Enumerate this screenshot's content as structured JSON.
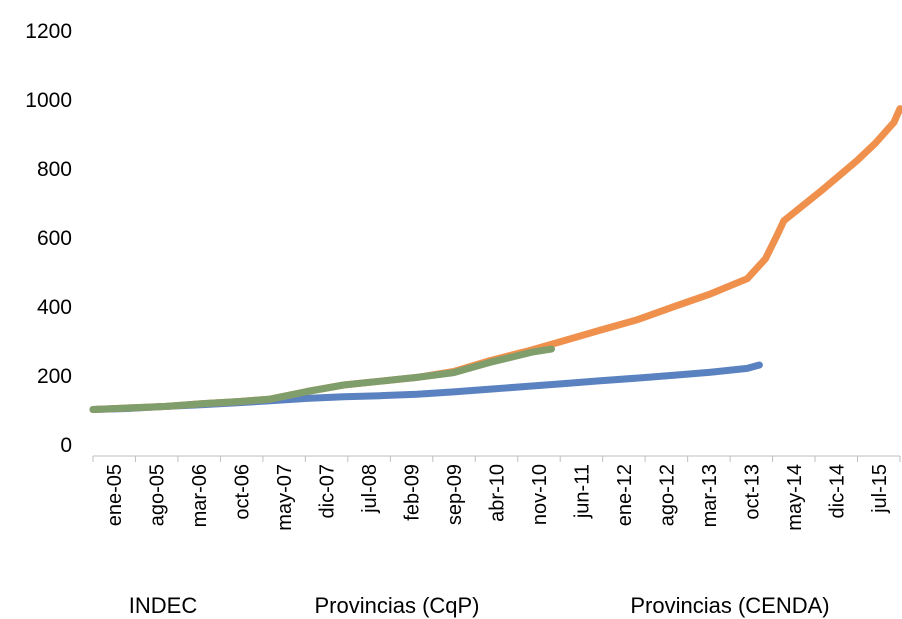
{
  "chart_data": {
    "type": "line",
    "title": "",
    "xlabel": "",
    "ylabel": "",
    "ylim": [
      0,
      1200
    ],
    "yticks": [
      0,
      200,
      400,
      600,
      800,
      1000,
      1200
    ],
    "x_start": "2005-01",
    "x_end": "2016-01",
    "x_tick_labels": [
      "ene-05",
      "ago-05",
      "mar-06",
      "oct-06",
      "may-07",
      "dic-07",
      "jul-08",
      "feb-09",
      "sep-09",
      "abr-10",
      "nov-10",
      "jun-11",
      "ene-12",
      "ago-12",
      "mar-13",
      "oct-13",
      "may-14",
      "dic-14",
      "jul-15"
    ],
    "grid": false,
    "legend_position": "bottom",
    "series": [
      {
        "name": "INDEC",
        "color": "#5b82c0",
        "points": [
          [
            "2005-01",
            103
          ],
          [
            "2005-07",
            106
          ],
          [
            "2006-01",
            112
          ],
          [
            "2006-07",
            117
          ],
          [
            "2007-01",
            123
          ],
          [
            "2007-06",
            128
          ],
          [
            "2007-12",
            135
          ],
          [
            "2008-06",
            140
          ],
          [
            "2008-12",
            143
          ],
          [
            "2009-06",
            147
          ],
          [
            "2009-12",
            154
          ],
          [
            "2010-06",
            162
          ],
          [
            "2010-12",
            170
          ],
          [
            "2011-06",
            178
          ],
          [
            "2011-12",
            186
          ],
          [
            "2012-06",
            194
          ],
          [
            "2012-12",
            202
          ],
          [
            "2013-06",
            211
          ],
          [
            "2013-12",
            222
          ],
          [
            "2014-02",
            232
          ]
        ]
      },
      {
        "name": "Provincias (CqP)",
        "color": "#f0904d",
        "points": [
          [
            "2005-01",
            103
          ],
          [
            "2006-01",
            112
          ],
          [
            "2006-07",
            120
          ],
          [
            "2007-01",
            126
          ],
          [
            "2007-06",
            133
          ],
          [
            "2007-12",
            155
          ],
          [
            "2008-06",
            174
          ],
          [
            "2008-12",
            185
          ],
          [
            "2009-06",
            196
          ],
          [
            "2009-12",
            213
          ],
          [
            "2010-06",
            245
          ],
          [
            "2010-12",
            272
          ],
          [
            "2011-06",
            302
          ],
          [
            "2011-12",
            333
          ],
          [
            "2012-06",
            363
          ],
          [
            "2012-12",
            401
          ],
          [
            "2013-06",
            438
          ],
          [
            "2013-12",
            482
          ],
          [
            "2014-03",
            540
          ],
          [
            "2014-05",
            612
          ],
          [
            "2014-06",
            650
          ],
          [
            "2014-12",
            735
          ],
          [
            "2015-06",
            825
          ],
          [
            "2015-09",
            875
          ],
          [
            "2015-12",
            935
          ],
          [
            "2016-01",
            975
          ]
        ]
      },
      {
        "name": "Provincias (CENDA)",
        "color": "#7f9e6b",
        "points": [
          [
            "2005-01",
            103
          ],
          [
            "2006-01",
            112
          ],
          [
            "2006-07",
            120
          ],
          [
            "2007-01",
            126
          ],
          [
            "2007-06",
            133
          ],
          [
            "2007-12",
            155
          ],
          [
            "2008-06",
            174
          ],
          [
            "2008-12",
            185
          ],
          [
            "2009-06",
            196
          ],
          [
            "2009-12",
            210
          ],
          [
            "2010-06",
            240
          ],
          [
            "2011-01",
            270
          ],
          [
            "2011-04",
            278
          ]
        ]
      }
    ]
  }
}
